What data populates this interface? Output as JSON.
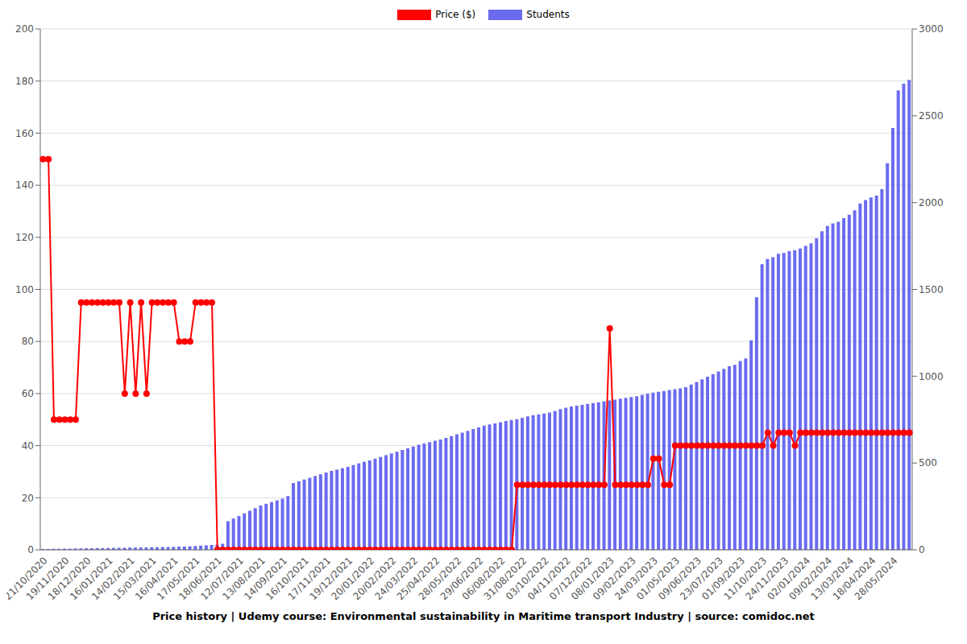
{
  "chart_data": {
    "type": "bar_line",
    "title": "Price history | Udemy course: Environmental sustainability in Maritime transport Industry | source: comidoc.net",
    "categories": [
      "21/10/2020",
      null,
      null,
      null,
      "19/11/2020",
      null,
      null,
      null,
      "18/12/2020",
      null,
      null,
      null,
      "16/01/2021",
      null,
      null,
      null,
      "14/02/2021",
      null,
      null,
      null,
      "15/03/2021",
      null,
      null,
      null,
      "16/04/2021",
      null,
      null,
      null,
      "17/05/2021",
      null,
      null,
      null,
      "18/06/2021",
      null,
      null,
      null,
      "12/07/2021",
      null,
      null,
      null,
      "13/08/2021",
      null,
      null,
      null,
      "14/09/2021",
      null,
      null,
      null,
      "16/10/2021",
      null,
      null,
      null,
      "17/11/2021",
      null,
      null,
      null,
      "19/12/2021",
      null,
      null,
      null,
      "20/01/2022",
      null,
      null,
      null,
      "20/02/2022",
      null,
      null,
      null,
      "24/03/2022",
      null,
      null,
      null,
      "25/04/2022",
      null,
      null,
      null,
      "28/05/2022",
      null,
      null,
      null,
      "29/06/2022",
      null,
      null,
      null,
      "06/08/2022",
      null,
      null,
      null,
      "31/08/2022",
      null,
      null,
      null,
      "03/10/2022",
      null,
      null,
      null,
      "04/11/2022",
      null,
      null,
      null,
      "07/12/2022",
      null,
      null,
      null,
      "08/01/2023",
      null,
      null,
      null,
      "09/02/2023",
      null,
      null,
      null,
      "24/03/2023",
      null,
      null,
      null,
      "01/05/2023",
      null,
      null,
      null,
      "09/06/2023",
      null,
      null,
      null,
      "23/07/2023",
      null,
      null,
      null,
      "01/09/2023",
      null,
      null,
      null,
      "11/10/2023",
      null,
      null,
      null,
      "24/11/2023",
      null,
      null,
      null,
      "02/01/2024",
      null,
      null,
      null,
      "09/02/2024",
      null,
      null,
      null,
      "13/03/2024",
      null,
      null,
      null,
      "18/04/2024",
      null,
      null,
      null,
      "28/05/2024",
      null,
      null,
      null
    ],
    "series": [
      {
        "name": "Price ($)",
        "color": "#ff0000",
        "type": "line",
        "marker": "circle",
        "values": [
          150,
          150,
          50,
          50,
          50,
          50,
          50,
          95,
          95,
          95,
          95,
          95,
          95,
          95,
          95,
          60,
          95,
          60,
          95,
          60,
          95,
          95,
          95,
          95,
          95,
          80,
          80,
          80,
          95,
          95,
          95,
          95,
          0,
          0,
          0,
          0,
          0,
          0,
          0,
          0,
          0,
          0,
          0,
          0,
          0,
          0,
          0,
          0,
          0,
          0,
          0,
          0,
          0,
          0,
          0,
          0,
          0,
          0,
          0,
          0,
          0,
          0,
          0,
          0,
          0,
          0,
          0,
          0,
          0,
          0,
          0,
          0,
          0,
          0,
          0,
          0,
          0,
          0,
          0,
          0,
          0,
          0,
          0,
          0,
          0,
          0,
          0,
          25,
          25,
          25,
          25,
          25,
          25,
          25,
          25,
          25,
          25,
          25,
          25,
          25,
          25,
          25,
          25,
          25,
          85,
          25,
          25,
          25,
          25,
          25,
          25,
          25,
          35,
          35,
          25,
          25,
          40,
          40,
          40,
          40,
          40,
          40,
          40,
          40,
          40,
          40,
          40,
          40,
          40,
          40,
          40,
          40,
          40,
          45,
          40,
          45,
          45,
          45,
          40,
          45,
          45,
          45,
          45,
          45,
          45,
          45,
          45,
          45,
          45,
          45,
          45,
          45,
          45,
          45,
          45,
          45,
          45,
          45,
          45,
          45
        ]
      },
      {
        "name": "Students",
        "color": "#6b6bf0",
        "type": "bar",
        "axis": "y2",
        "values": [
          5,
          5,
          6,
          6,
          7,
          7,
          8,
          8,
          9,
          9,
          10,
          10,
          11,
          11,
          12,
          12,
          13,
          13,
          14,
          14,
          15,
          15,
          16,
          16,
          17,
          18,
          19,
          20,
          22,
          24,
          26,
          28,
          30,
          35,
          165,
          180,
          195,
          210,
          225,
          240,
          255,
          265,
          275,
          285,
          295,
          310,
          385,
          395,
          405,
          415,
          425,
          435,
          445,
          455,
          462,
          470,
          478,
          488,
          498,
          507,
          515,
          525,
          535,
          545,
          555,
          565,
          575,
          585,
          595,
          605,
          612,
          620,
          628,
          635,
          645,
          655,
          665,
          675,
          685,
          695,
          705,
          715,
          722,
          728,
          735,
          742,
          748,
          752,
          760,
          768,
          775,
          780,
          785,
          790,
          800,
          810,
          818,
          825,
          830,
          835,
          840,
          845,
          850,
          855,
          860,
          865,
          870,
          875,
          880,
          885,
          893,
          900,
          905,
          910,
          915,
          920,
          925,
          930,
          937,
          952,
          967,
          982,
          997,
          1012,
          1027,
          1042,
          1057,
          1065,
          1087,
          1102,
          1207,
          1455,
          1645,
          1675,
          1685,
          1705,
          1710,
          1720,
          1725,
          1735,
          1750,
          1765,
          1795,
          1835,
          1865,
          1880,
          1890,
          1910,
          1930,
          1955,
          1995,
          2015,
          2030,
          2040,
          2077,
          2227,
          2430,
          2647,
          2685,
          2707
        ]
      }
    ],
    "ylim": [
      0,
      200
    ],
    "yticks": [
      0,
      20,
      40,
      60,
      80,
      100,
      120,
      140,
      160,
      180,
      200
    ],
    "y2lim": [
      0,
      3000
    ],
    "y2ticks": [
      0,
      500,
      1000,
      1500,
      2000,
      2500,
      3000
    ],
    "grid": true,
    "legend": "top"
  }
}
